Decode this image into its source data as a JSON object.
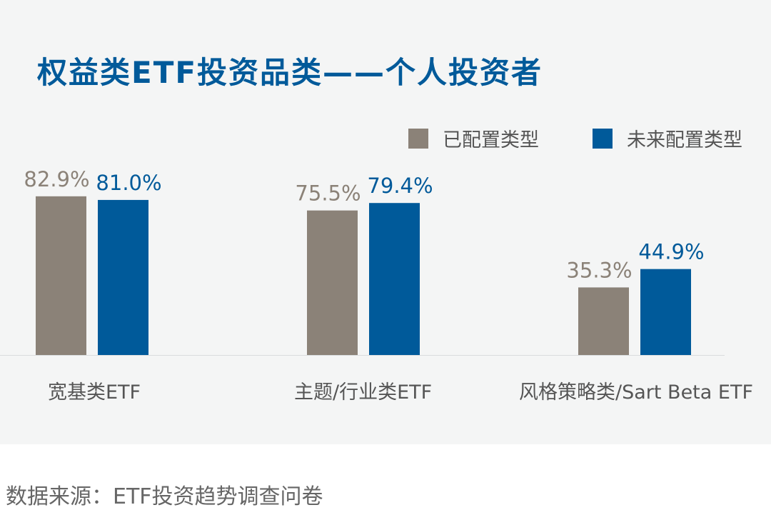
{
  "title": "权益类ETF投资品类——个人投资者",
  "source": "数据来源：ETF投资趋势调查问卷",
  "colors": {
    "configured": "#8b8278",
    "future": "#005a9a",
    "panel": "#f4f5f5",
    "title": "#005a9a"
  },
  "chart_data": {
    "type": "bar",
    "categories": [
      "宽基类ETF",
      "主题/行业类ETF",
      "风格策略类/Sart Beta ETF"
    ],
    "series": [
      {
        "name": "已配置类型",
        "values": [
          82.9,
          75.5,
          35.3
        ],
        "labels": [
          "82.9%",
          "75.5%",
          "35.3%"
        ]
      },
      {
        "name": "未来配置类型",
        "values": [
          81.0,
          79.4,
          44.9
        ],
        "labels": [
          "81.0%",
          "79.4%",
          "44.9%"
        ]
      }
    ],
    "ylim": [
      0,
      100
    ],
    "legend_position": "top-right",
    "grid": false
  }
}
